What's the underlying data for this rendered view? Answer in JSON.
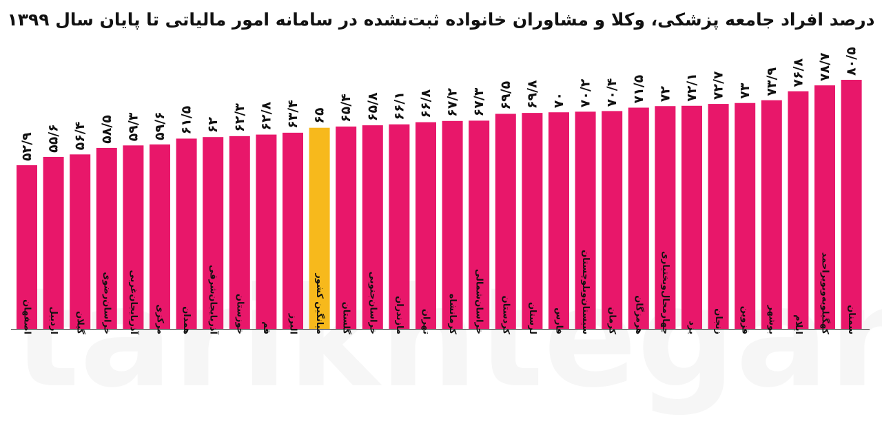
{
  "chart_data": {
    "type": "bar",
    "title": "درصد افراد جامعه پزشکی، وکلا و مشاوران خانواده ثبت‌نشده در سامانه امور مالیاتی تا پایان سال ۱۳۹۹",
    "xlabel": "",
    "ylabel": "",
    "categories": [
      "اصفهان",
      "اردبیل",
      "گیلان",
      "خراسان‌رضوی",
      "آذربایجان‌غربی",
      "مرکزی",
      "همدان",
      "آذربایجان‌شرقی",
      "خوزستان",
      "قم",
      "البرز",
      "میانگین کشور",
      "گلستان",
      "خراسان‌جنوبی",
      "مازندران",
      "تهران",
      "کرمانشاه",
      "خراسان‌شمالی",
      "کردستان",
      "لرستان",
      "فارس",
      "سیستان‌وبلوچستان",
      "کرمان",
      "هرمزگان",
      "چهارمحال‌وبختیاری",
      "یزد",
      "زنجان",
      "قزوین",
      "بوشهر",
      "ایلام",
      "کهگیلویه‌وبویراحمد",
      "سمنان"
    ],
    "values": [
      52.9,
      55.6,
      56.4,
      58.5,
      59.3,
      59.6,
      61.5,
      62,
      62.3,
      62.8,
      63.4,
      65,
      65.4,
      65.8,
      66.1,
      66.8,
      67.2,
      67.3,
      69.5,
      69.8,
      70,
      70.2,
      70.4,
      71.5,
      72,
      72.1,
      72.7,
      73,
      73.9,
      76.8,
      78.7,
      80.5
    ],
    "value_labels": [
      "۵۲/۹",
      "۵۵/۶",
      "۵۶/۴",
      "۵۸/۵",
      "۵۹/۳",
      "۵۹/۶",
      "۶۱/۵",
      "۶۲",
      "۶۲/۳",
      "۶۲/۸",
      "۶۳/۴",
      "۶۵",
      "۶۵/۴",
      "۶۵/۸",
      "۶۶/۱",
      "۶۶/۸",
      "۶۷/۲",
      "۶۷/۳",
      "۶۹/۵",
      "۶۹/۸",
      "۷۰",
      "۷۰/۲",
      "۷۰/۴",
      "۷۱/۵",
      "۷۲",
      "۷۲/۱",
      "۷۲/۷",
      "۷۳",
      "۷۳/۹",
      "۷۶/۸",
      "۷۸/۷",
      "۸۰/۵"
    ],
    "highlight_category": "میانگین کشور",
    "ylim": [
      0,
      82
    ],
    "grid": false,
    "legend": "none"
  },
  "colors": {
    "bar": "#e8176a",
    "highlight": "#f7b91c",
    "text": "#111111",
    "axis": "#222222"
  },
  "watermark": "tarikhtegan"
}
